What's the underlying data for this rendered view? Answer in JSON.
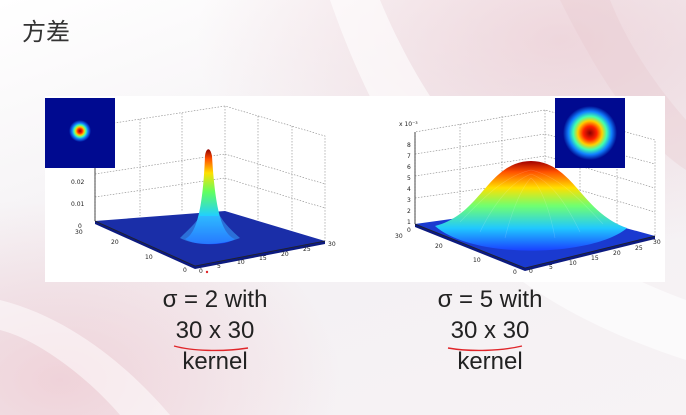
{
  "slide": {
    "title": "方差"
  },
  "figures": [
    {
      "sigma_caption": "σ = 2 with",
      "size_caption": "30 x 30",
      "kernel_caption": "kernel",
      "axis_exponent": "",
      "z_ticks": [
        "0.02",
        "0.01",
        "0"
      ],
      "x_ticks": [
        "0",
        "5",
        "10",
        "15",
        "20",
        "25",
        "30"
      ],
      "y_ticks": [
        "30",
        "20",
        "10",
        "0"
      ]
    },
    {
      "sigma_caption": "σ = 5 with",
      "size_caption": "30 x 30",
      "kernel_caption": "kernel",
      "axis_exponent": "x 10⁻³",
      "z_ticks": [
        "8",
        "7",
        "6",
        "5",
        "4",
        "3",
        "2",
        "1",
        "0"
      ],
      "x_ticks": [
        "0",
        "5",
        "10",
        "15",
        "20",
        "25",
        "30"
      ],
      "y_ticks": [
        "30",
        "20",
        "10",
        "0"
      ]
    }
  ],
  "chart_data": [
    {
      "type": "surface",
      "title": "",
      "description_sigma": 2,
      "kernel_size": [
        30,
        30
      ],
      "zlim": [
        0,
        0.025
      ],
      "xlim": [
        0,
        30
      ],
      "ylim": [
        0,
        30
      ]
    },
    {
      "type": "surface",
      "title": "",
      "description_sigma": 5,
      "kernel_size": [
        30,
        30
      ],
      "zlim": [
        0,
        0.008
      ],
      "xlim": [
        0,
        30
      ],
      "ylim": [
        0,
        30
      ]
    }
  ],
  "colors": {
    "annotation_red": "#e0262a"
  }
}
